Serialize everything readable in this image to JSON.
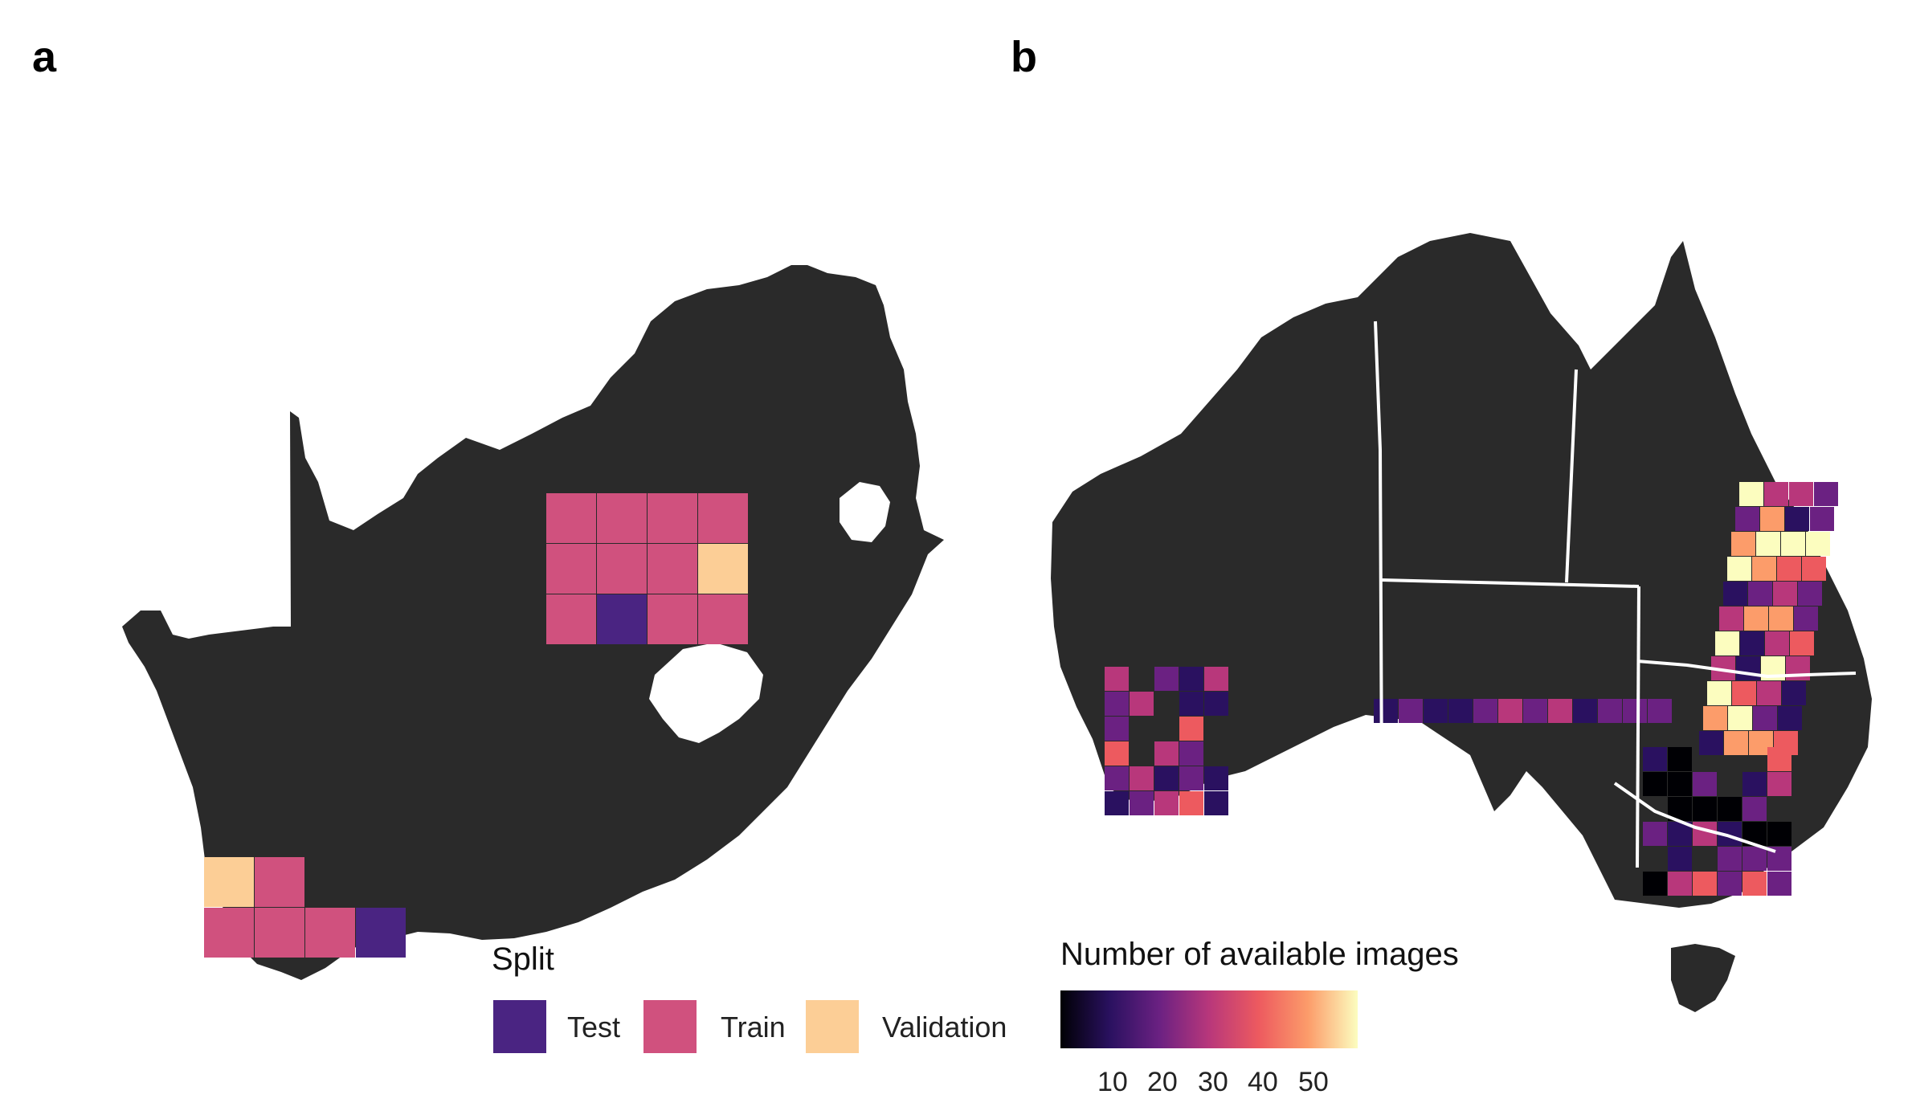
{
  "panels": {
    "a": {
      "label": "a"
    },
    "b": {
      "label": "b"
    }
  },
  "legend_split": {
    "title": "Split",
    "items": [
      {
        "key": "test",
        "label": "Test",
        "color": "#4a2482"
      },
      {
        "key": "train",
        "label": "Train",
        "color": "#d0517e"
      },
      {
        "key": "validation",
        "label": "Validation",
        "color": "#fcce96"
      }
    ]
  },
  "legend_count": {
    "title": "Number of available images",
    "palette": "magma",
    "colors": [
      "#000004",
      "#2a1160",
      "#6b2182",
      "#b8377b",
      "#ed5a5f",
      "#fc9c6a",
      "#fcfdbf"
    ],
    "range": [
      4,
      57
    ],
    "ticks": [
      "10",
      "20",
      "30",
      "40",
      "50"
    ]
  },
  "colors": {
    "land": "#2a2a2a",
    "background": "#ffffff",
    "state_border": "#ffffff"
  }
}
